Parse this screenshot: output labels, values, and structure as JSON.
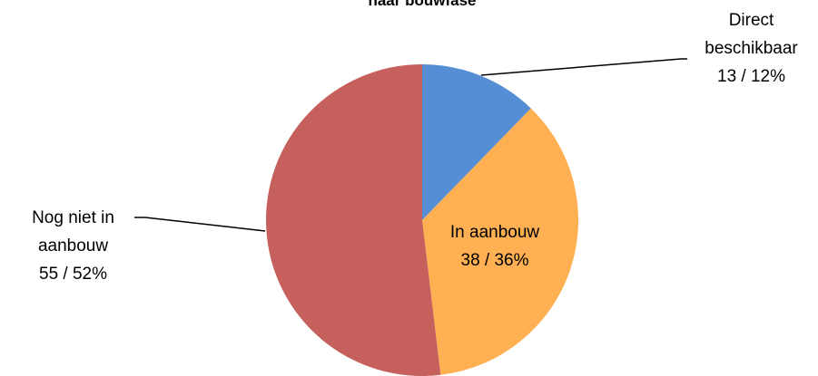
{
  "chart_data": {
    "type": "pie",
    "title": "naar bouwfase",
    "categories": [
      "Direct beschikbaar",
      "In aanbouw",
      "Nog niet in aanbouw"
    ],
    "values": [
      13,
      38,
      55
    ],
    "value_labels": [
      "13 / 12%",
      "38 / 36%",
      "55 / 52%"
    ],
    "colors": [
      "#558ed5",
      "#ffb052",
      "#c6605d"
    ]
  }
}
